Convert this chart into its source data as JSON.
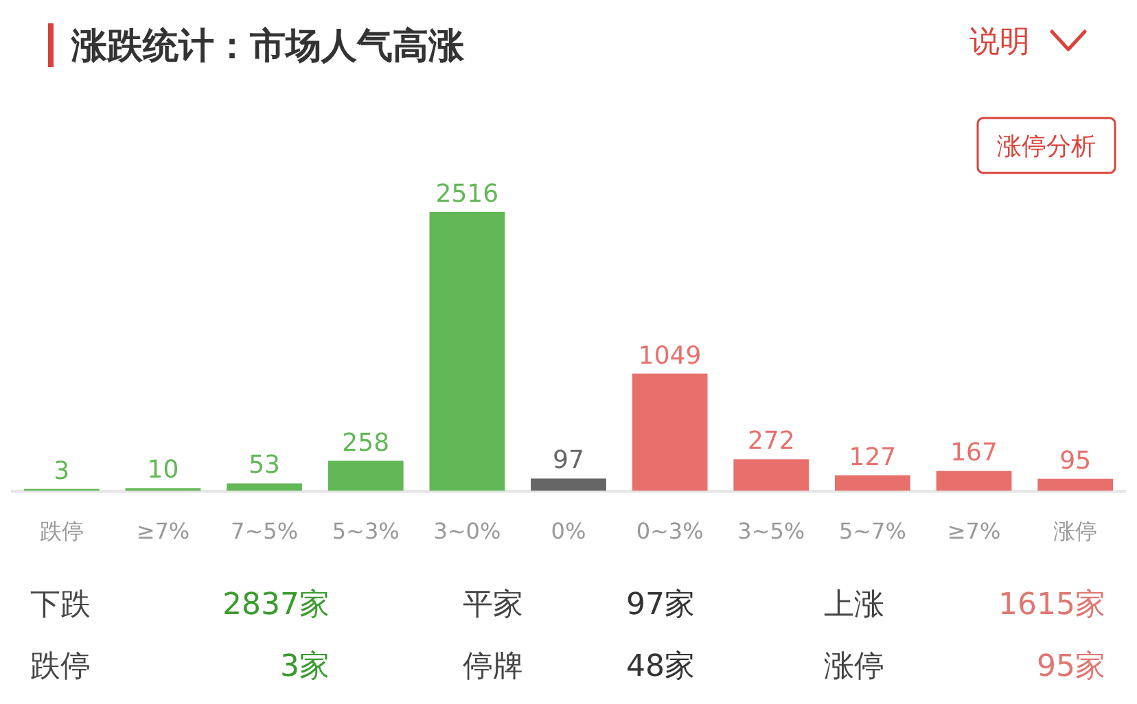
{
  "chart_data": {
    "type": "bar",
    "title": "涨跌统计：市场人气高涨",
    "categories": [
      "跌停",
      "≥7%",
      "7~5%",
      "5~3%",
      "3~0%",
      "0%",
      "0~3%",
      "3~5%",
      "5~7%",
      "≥7%",
      "涨停"
    ],
    "values": [
      3,
      10,
      53,
      258,
      2516,
      97,
      1049,
      272,
      127,
      167,
      95
    ],
    "colors": [
      "#62b757",
      "#62b757",
      "#62b757",
      "#62b757",
      "#62b757",
      "#666666",
      "#e8706c",
      "#e8706c",
      "#e8706c",
      "#e8706c",
      "#e8706c"
    ],
    "data_labels": true,
    "annotations": [
      "说明",
      "涨停分析",
      "下跌",
      "2837家",
      "平家",
      "97家",
      "上涨",
      "1615家",
      "跌停",
      "3家",
      "停牌",
      "48家",
      "涨停",
      "95家"
    ]
  }
}
